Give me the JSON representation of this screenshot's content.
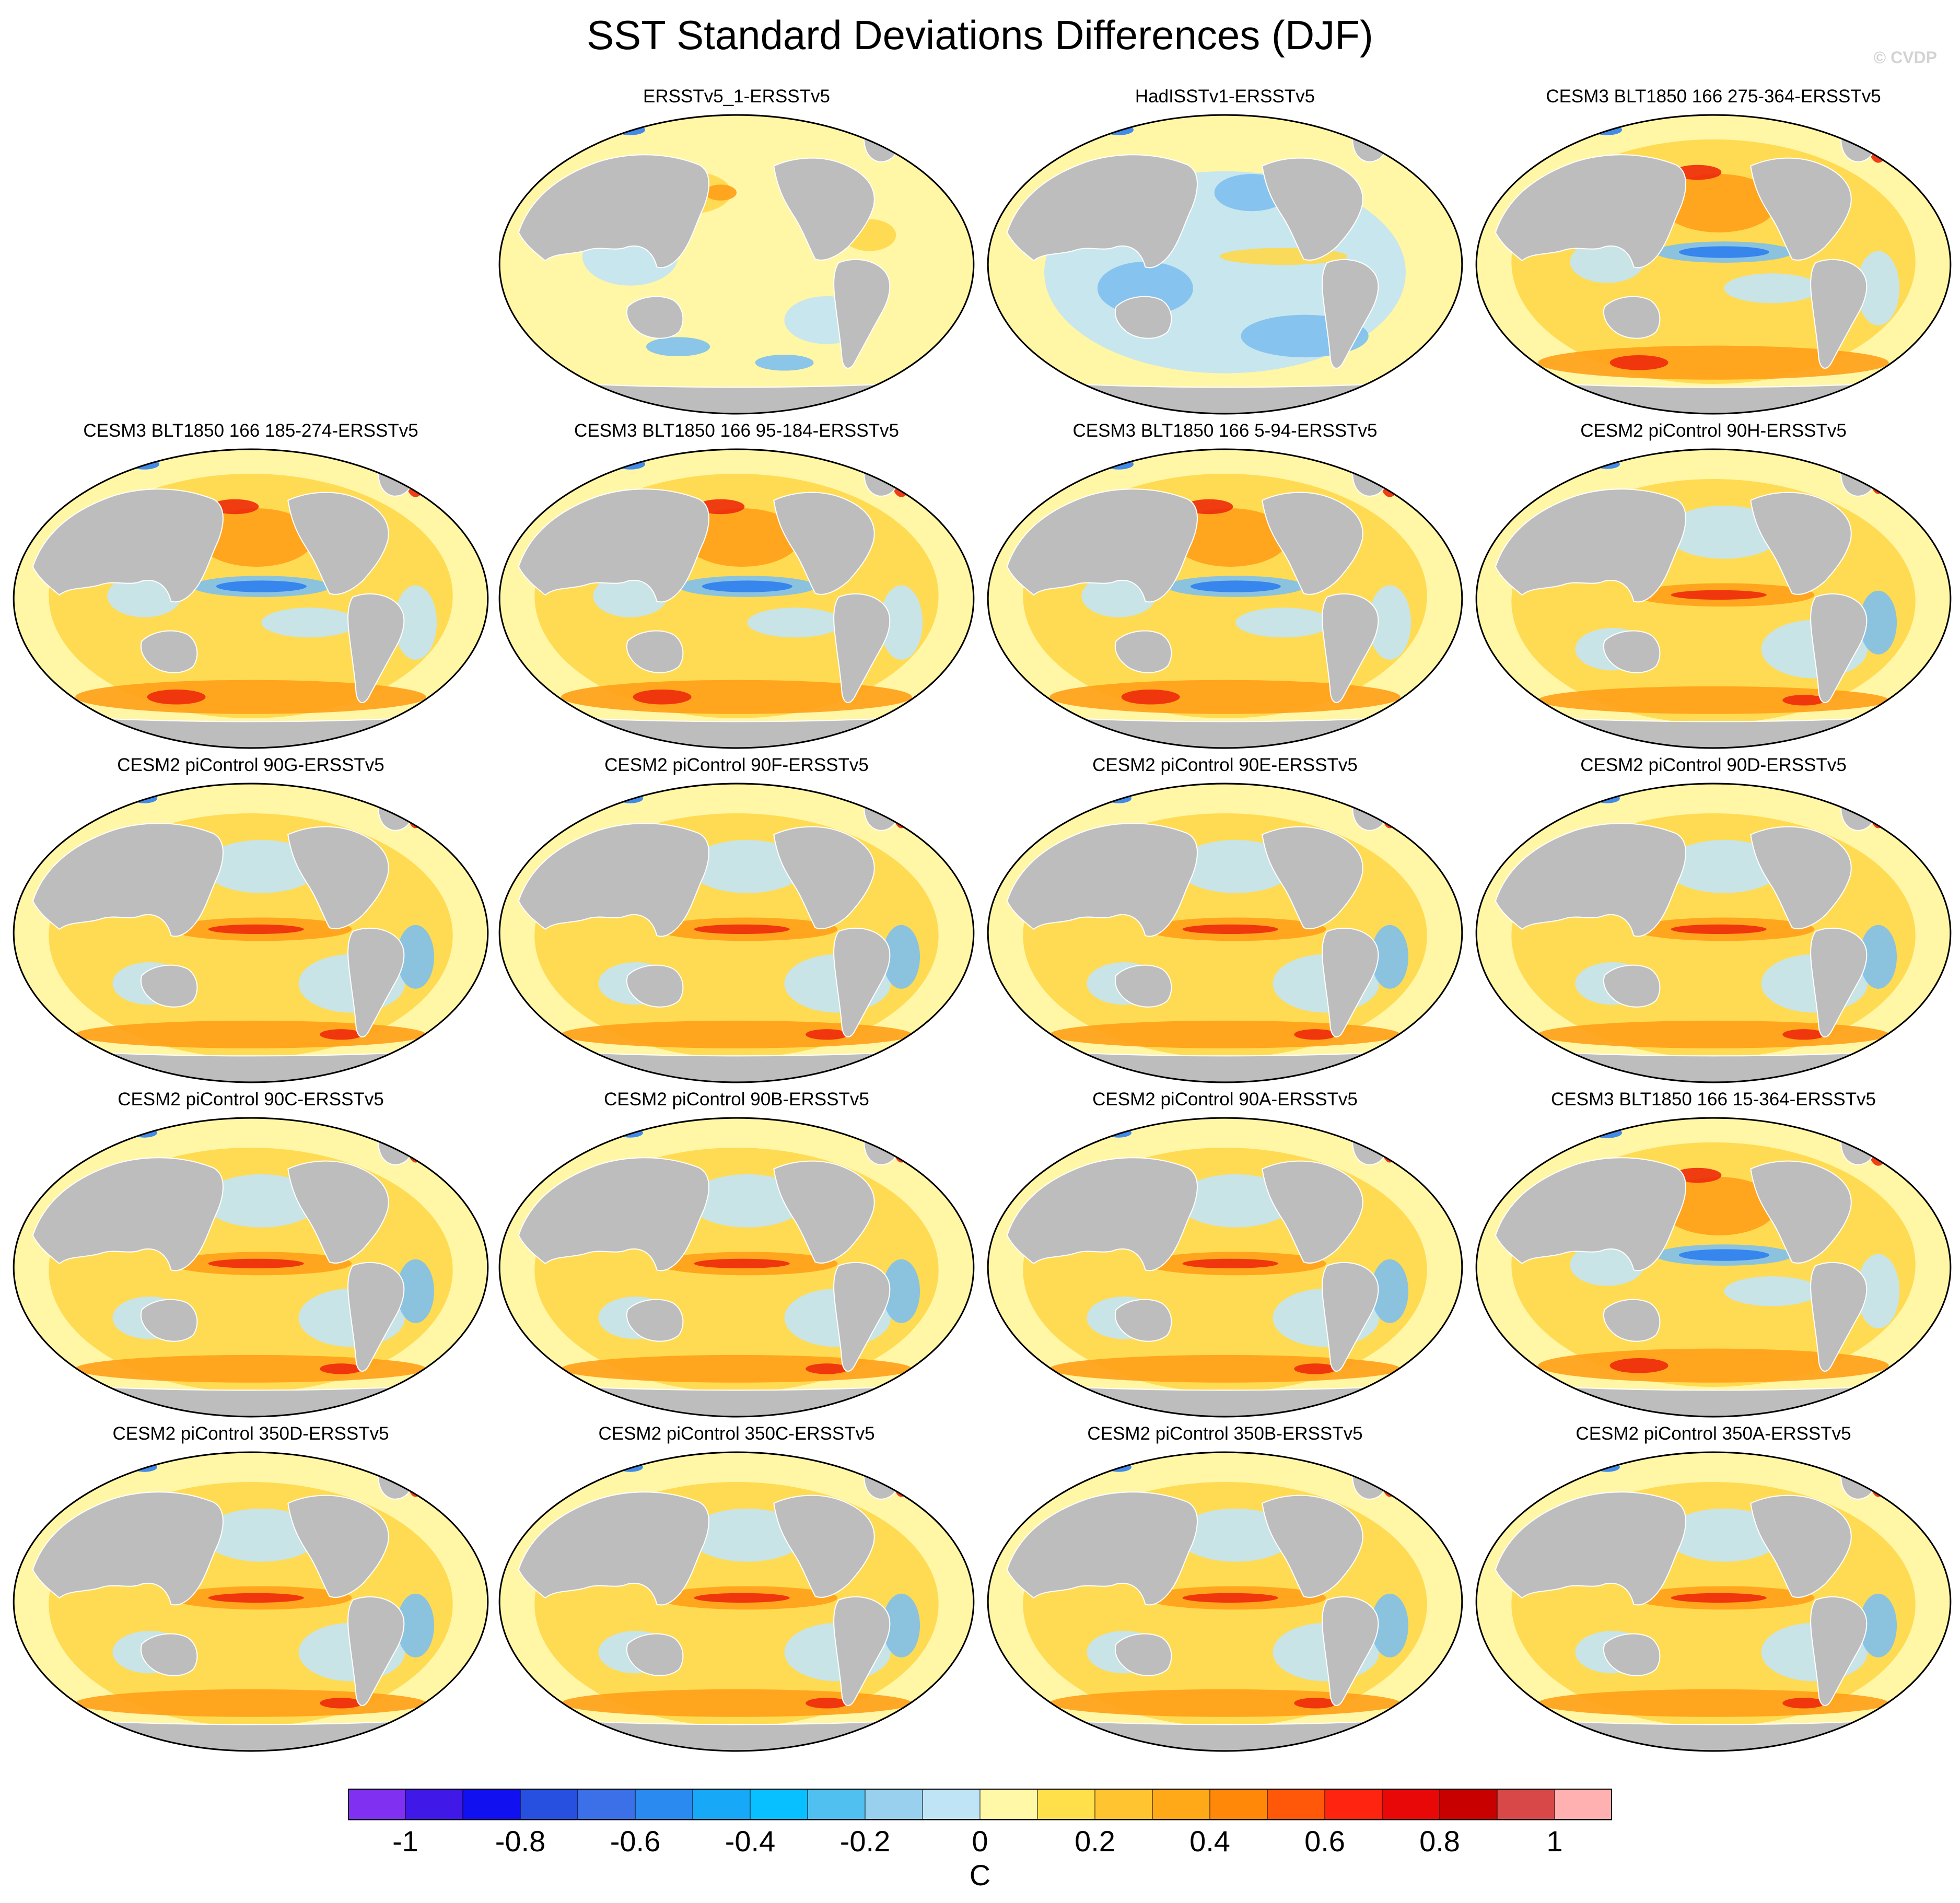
{
  "title": "SST Standard Deviations Differences (DJF)",
  "copyright": "© CVDP",
  "panels": [
    {
      "label": "ERSSTv5_1-ERSSTv5",
      "pattern": "obs"
    },
    {
      "label": "HadISSTv1-ERSSTv5",
      "pattern": "cool"
    },
    {
      "label": "CESM3 BLT1850 166 275-364-ERSSTv5",
      "pattern": "cesm3"
    },
    {
      "label": "CESM3 BLT1850 166 185-274-ERSSTv5",
      "pattern": "cesm3"
    },
    {
      "label": "CESM3 BLT1850 166 95-184-ERSSTv5",
      "pattern": "cesm3"
    },
    {
      "label": "CESM3 BLT1850 166 5-94-ERSSTv5",
      "pattern": "cesm3"
    },
    {
      "label": "CESM2 piControl 90H-ERSSTv5",
      "pattern": "cesm2"
    },
    {
      "label": "CESM2 piControl 90G-ERSSTv5",
      "pattern": "cesm2"
    },
    {
      "label": "CESM2 piControl 90F-ERSSTv5",
      "pattern": "cesm2"
    },
    {
      "label": "CESM2 piControl 90E-ERSSTv5",
      "pattern": "cesm2"
    },
    {
      "label": "CESM2 piControl 90D-ERSSTv5",
      "pattern": "cesm2"
    },
    {
      "label": "CESM2 piControl 90C-ERSSTv5",
      "pattern": "cesm2"
    },
    {
      "label": "CESM2 piControl 90B-ERSSTv5",
      "pattern": "cesm2"
    },
    {
      "label": "CESM2 piControl 90A-ERSSTv5",
      "pattern": "cesm2"
    },
    {
      "label": "CESM3 BLT1850 166 15-364-ERSSTv5",
      "pattern": "cesm3"
    },
    {
      "label": "CESM2 piControl 350D-ERSSTv5",
      "pattern": "cesm2"
    },
    {
      "label": "CESM2 piControl 350C-ERSSTv5",
      "pattern": "cesm2"
    },
    {
      "label": "CESM2 piControl 350B-ERSSTv5",
      "pattern": "cesm2"
    },
    {
      "label": "CESM2 piControl 350A-ERSSTv5",
      "pattern": "cesm2"
    }
  ],
  "colorbar": {
    "colors": [
      "#8030f0",
      "#4018e8",
      "#1010f0",
      "#2850e0",
      "#3c70e8",
      "#2a8af0",
      "#18a8f8",
      "#08c0ff",
      "#50c0f0",
      "#98d0ee",
      "#bfe4f6",
      "#fff8a6",
      "#ffe04a",
      "#ffc430",
      "#ffa818",
      "#ff8808",
      "#ff5808",
      "#ff2410",
      "#e80808",
      "#c80000",
      "#d84848",
      "#ffb0b0"
    ],
    "labels": [
      "-1",
      "-0.8",
      "-0.6",
      "-0.4",
      "-0.2",
      "0",
      "0.2",
      "0.4",
      "0.6",
      "0.8",
      "1"
    ],
    "units": "C"
  },
  "palette": {
    "land": "#bdbdbd",
    "ocean": "#fff6a6",
    "neutral_cool": "#c2e4f6",
    "cool": "#7ec0ee",
    "blue": "#2e7ff0",
    "warm": "#ffd84a",
    "orange": "#ffa018",
    "red": "#ee2a0a"
  }
}
